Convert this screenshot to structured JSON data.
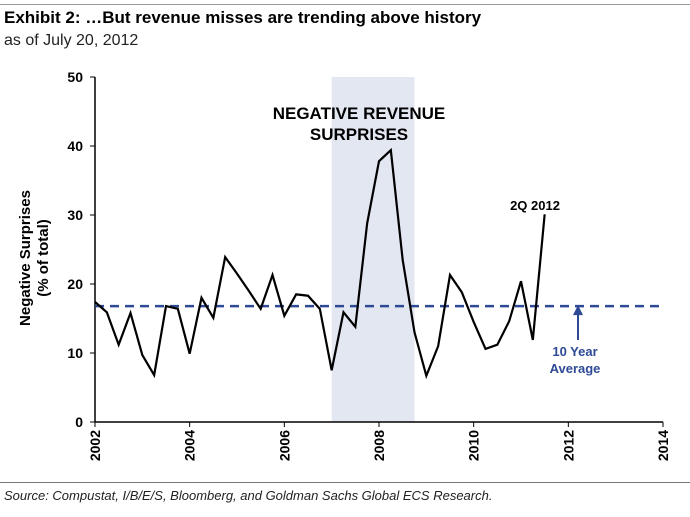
{
  "header": {
    "title": "Exhibit 2: …But revenue misses are trending above history",
    "subtitle": "as of July 20, 2012"
  },
  "footer": {
    "source": "Source: Compustat, I/B/E/S, Bloomberg, and Goldman Sachs Global ECS Research."
  },
  "chart_data": {
    "type": "line",
    "title": "NEGATIVE REVENUE SURPRISES",
    "ylabel_line1": "Negative Surprises",
    "ylabel_line2": "(% of total)",
    "xlim": [
      2002,
      2014
    ],
    "ylim": [
      0,
      50
    ],
    "xticks": [
      "2002",
      "2004",
      "2006",
      "2008",
      "2010",
      "2012",
      "2014"
    ],
    "yticks": [
      "0",
      "10",
      "20",
      "30",
      "40",
      "50"
    ],
    "grid": false,
    "shaded_region": {
      "x": [
        2007.0,
        2008.75
      ],
      "color": "#e3e7f2"
    },
    "average": {
      "value": 16.8,
      "label_line1": "10 Year",
      "label_line2": "Average",
      "color": "#2e4a94"
    },
    "annotation": "2Q 2012",
    "series": [
      {
        "color": "#000000",
        "x_start": 2002,
        "x_step": 0.25,
        "values": [
          17.4,
          15.9,
          11.2,
          15.8,
          9.7,
          6.8,
          16.8,
          16.4,
          9.9,
          18.0,
          15.1,
          23.9,
          21.5,
          19.0,
          16.4,
          21.3,
          15.4,
          18.5,
          18.3,
          16.4,
          7.5,
          15.9,
          13.8,
          28.8,
          37.8,
          39.4,
          23.5,
          13.0,
          6.7,
          11.0,
          21.3,
          18.8,
          14.5,
          10.6,
          11.2,
          14.6,
          20.4,
          11.9,
          30.1
        ]
      }
    ]
  }
}
